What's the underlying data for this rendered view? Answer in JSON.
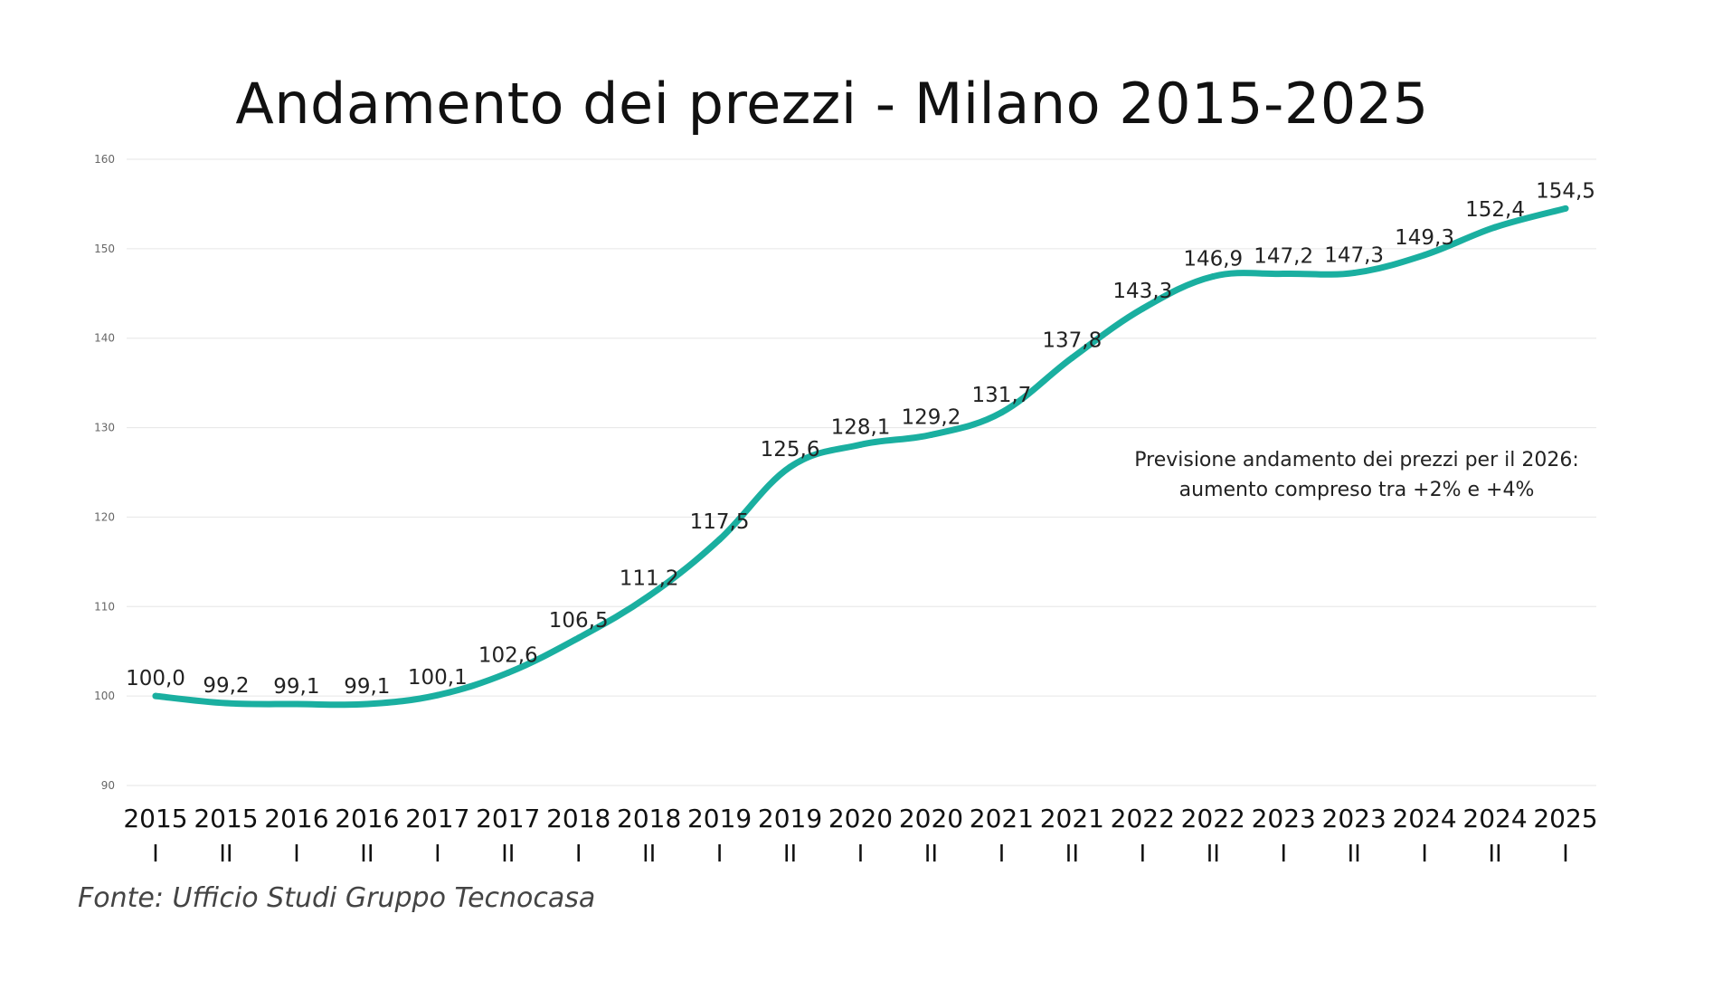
{
  "chart_data": {
    "type": "line",
    "title": "Andamento dei prezzi - Milano 2015-2025",
    "xlabel": "",
    "ylabel": "",
    "ylim": [
      90,
      160
    ],
    "yticks": [
      "90",
      "100",
      "110",
      "120",
      "130",
      "140",
      "150",
      "160"
    ],
    "categories": [
      {
        "year": "2015",
        "semester": "I"
      },
      {
        "year": "2015",
        "semester": "II"
      },
      {
        "year": "2016",
        "semester": "I"
      },
      {
        "year": "2016",
        "semester": "II"
      },
      {
        "year": "2017",
        "semester": "I"
      },
      {
        "year": "2017",
        "semester": "II"
      },
      {
        "year": "2018",
        "semester": "I"
      },
      {
        "year": "2018",
        "semester": "II"
      },
      {
        "year": "2019",
        "semester": "I"
      },
      {
        "year": "2019",
        "semester": "II"
      },
      {
        "year": "2020",
        "semester": "I"
      },
      {
        "year": "2020",
        "semester": "II"
      },
      {
        "year": "2021",
        "semester": "I"
      },
      {
        "year": "2021",
        "semester": "II"
      },
      {
        "year": "2022",
        "semester": "I"
      },
      {
        "year": "2022",
        "semester": "II"
      },
      {
        "year": "2023",
        "semester": "I"
      },
      {
        "year": "2023",
        "semester": "II"
      },
      {
        "year": "2024",
        "semester": "I"
      },
      {
        "year": "2024",
        "semester": "II"
      },
      {
        "year": "2025",
        "semester": "I"
      }
    ],
    "series": [
      {
        "values": [
          100.0,
          99.2,
          99.1,
          99.1,
          100.1,
          102.6,
          106.5,
          111.2,
          117.5,
          125.6,
          128.1,
          129.2,
          131.7,
          137.8,
          143.3,
          146.9,
          147.2,
          147.3,
          149.3,
          152.4,
          154.5
        ],
        "labels": [
          "100,0",
          "99,2",
          "99,1",
          "99,1",
          "100,1",
          "102,6",
          "106,5",
          "111,2",
          "117,5",
          "125,6",
          "128,1",
          "129,2",
          "131,7",
          "137,8",
          "143,3",
          "146,9",
          "147,2",
          "147,3",
          "149,3",
          "152,4",
          "154,5"
        ],
        "color": "#1aafa0"
      }
    ],
    "grid": true,
    "legend": "none"
  },
  "annotation": {
    "line1": "Previsione andamento dei prezzi per il 2026:",
    "line2": "aumento compreso tra +2% e +4%"
  },
  "source": "Fonte: Ufficio Studi Gruppo Tecnocasa",
  "colors": {
    "line": "#1aafa0",
    "grid": "#e6e6e6"
  }
}
